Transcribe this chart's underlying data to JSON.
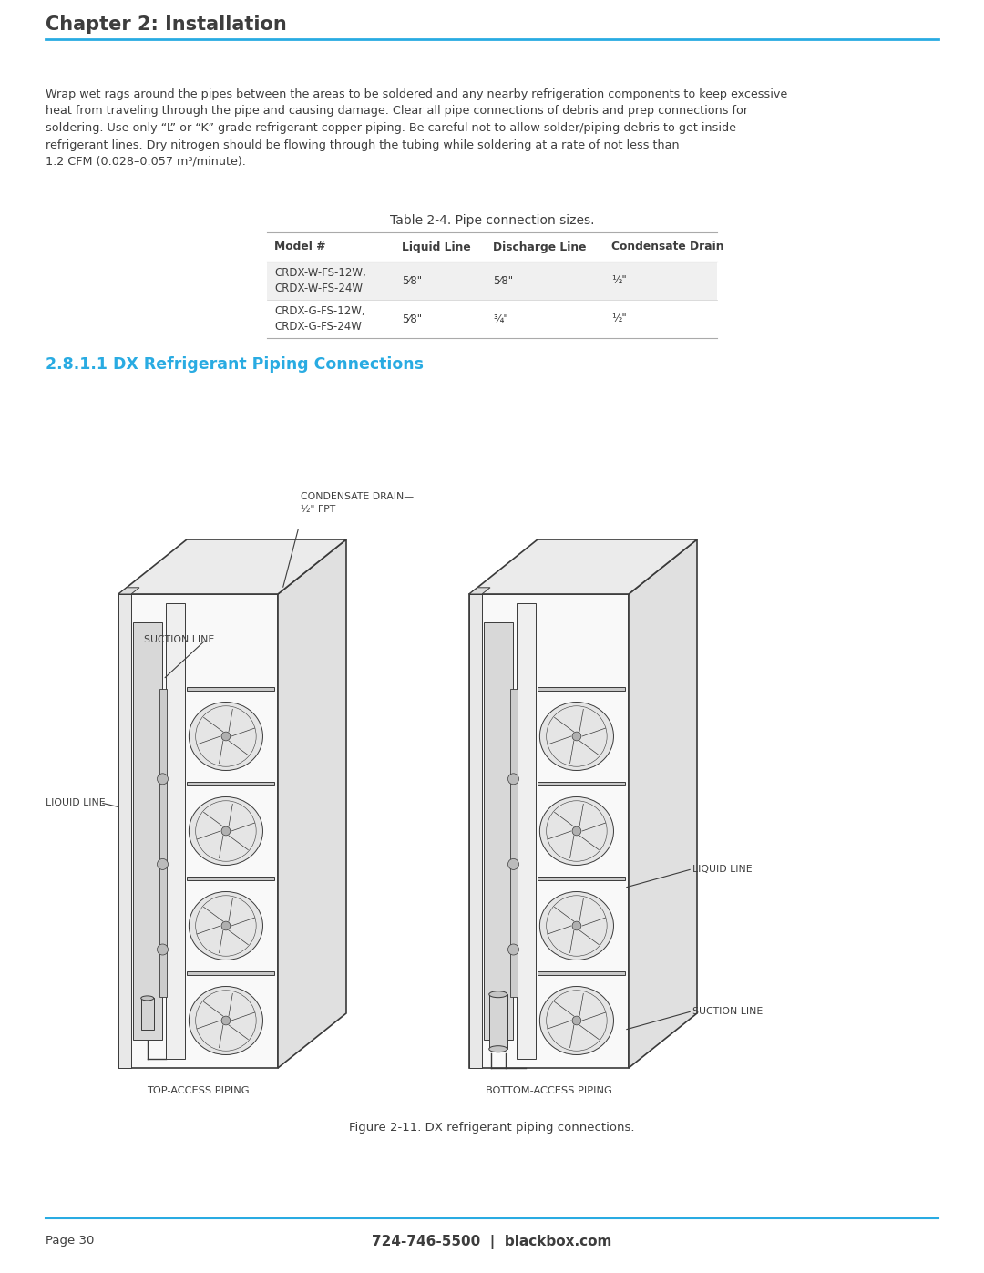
{
  "page_bg": "#ffffff",
  "chapter_title": "Chapter 2: Installation",
  "chapter_title_color": "#3d3d3d",
  "chapter_line_color": "#29abe2",
  "body_text": "Wrap wet rags around the pipes between the areas to be soldered and any nearby refrigeration components to keep excessive\nheat from traveling through the pipe and causing damage. Clear all pipe connections of debris and prep connections for\nsoldering. Use only “L” or “K” grade refrigerant copper piping. Be careful not to allow solder/piping debris to get inside\nrefrigerant lines. Dry nitrogen should be flowing through the tubing while soldering at a rate of not less than\n1.2 CFM (0.028–0.057 m³/minute).",
  "body_text_color": "#3d3d3d",
  "table_title": "Table 2-4. Pipe connection sizes.",
  "table_title_color": "#3d3d3d",
  "table_headers": [
    "Model #",
    "Liquid Line",
    "Discharge Line",
    "Condensate Drain"
  ],
  "table_header_color": "#3d3d3d",
  "table_rows": [
    [
      "CRDX-W-FS-12W,\nCRDX-W-FS-24W",
      "5⁄8\"",
      "5⁄8\"",
      "½\""
    ],
    [
      "CRDX-G-FS-12W,\nCRDX-G-FS-24W",
      "5⁄8\"",
      "¾\"",
      "½\""
    ]
  ],
  "table_row_bg_alt": "#f0f0f0",
  "table_row_bg": "#ffffff",
  "section_title": "2.8.1.1 DX Refrigerant Piping Connections",
  "section_title_color": "#29abe2",
  "figure_caption": "Figure 2-11. DX refrigerant piping connections.",
  "figure_caption_color": "#3d3d3d",
  "top_access_label": "TOP-ACCESS PIPING",
  "bottom_access_label": "BOTTOM-ACCESS PIPING",
  "label_condensate": "CONDENSATE DRAIN—",
  "label_condensate2": "½\" FPT",
  "label_suction": "SUCTION LINE",
  "label_liquid": "LIQUID LINE",
  "label_liquid_right": "LIQUID LINE",
  "label_suction_right": "SUCTION LINE",
  "footer_line_color": "#29abe2",
  "footer_left": "Page 30",
  "footer_center": "724-746-5500  |  blackbox.com",
  "footer_color": "#3d3d3d",
  "line_color": "#3a3a3a",
  "fill_light": "#f5f5f5",
  "fill_mid": "#e8e8e8",
  "fill_dark": "#d0d0d0"
}
